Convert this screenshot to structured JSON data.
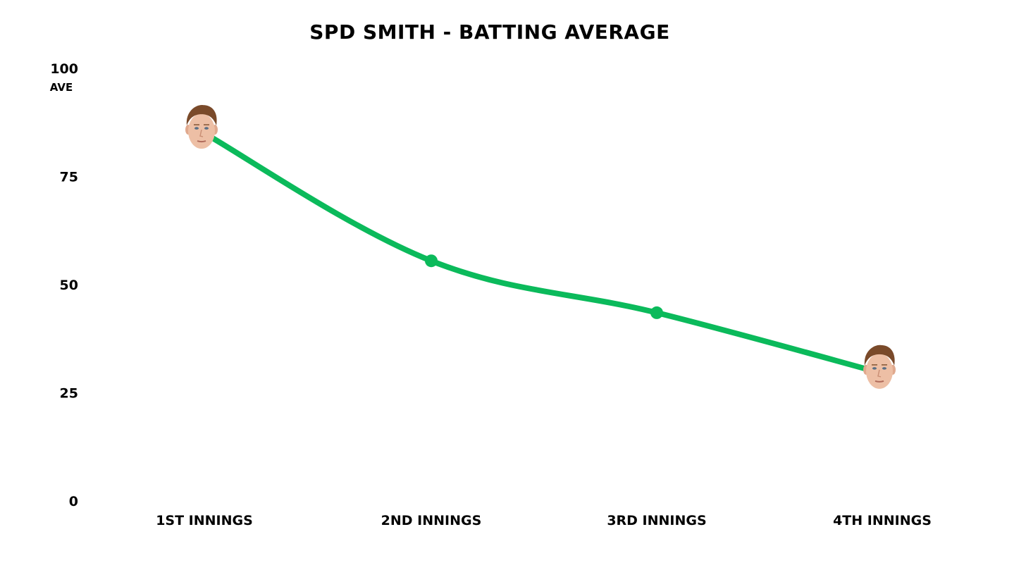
{
  "chart_data": {
    "type": "line",
    "title": "SPD SMITH - BATTING AVERAGE",
    "xlabel": "",
    "ylabel": "AVE",
    "categories": [
      "1ST INNINGS",
      "2ND INNINGS",
      "3RD INNINGS",
      "4TH INNINGS"
    ],
    "series": [
      {
        "values": [
          85,
          55.5,
          43.5,
          29.5
        ],
        "color": "#0bba5b"
      }
    ],
    "ylim": [
      0,
      100
    ],
    "yticks": [
      "0",
      "25",
      "50",
      "75",
      "100"
    ],
    "ytick_values": [
      0,
      25,
      50,
      75,
      100
    ],
    "grid": false,
    "legend": "none",
    "marker_styles": [
      "face-photo",
      "dot",
      "dot",
      "face-photo"
    ]
  }
}
